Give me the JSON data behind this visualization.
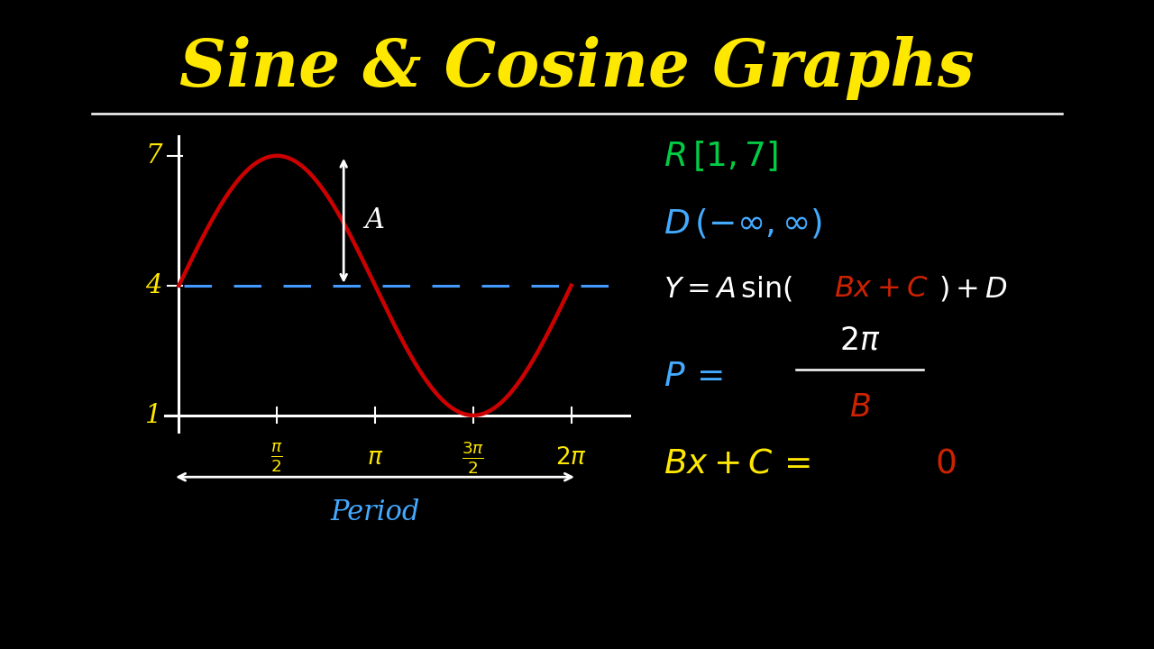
{
  "title": "Sine & Cosine Graphs",
  "title_color": "#FFE800",
  "bg_color": "#000000",
  "title_fontsize": 52,
  "separator_color": "#FFFFFF",
  "graph": {
    "gx0": 0.115,
    "gy0": 0.36,
    "gw": 0.38,
    "gh": 0.4,
    "y_labels": [
      1,
      4,
      7
    ],
    "sine_color": "#CC0000",
    "midline_color": "#4499FF",
    "axis_color": "#FFFFFF",
    "label_color": "#FFE800"
  },
  "annotations": {
    "period_label_color": "#44AAFF",
    "R_color": "#00CC44",
    "D_color": "#44AAFF",
    "P_color": "#44AAFF",
    "formula_main_color": "#FFFFFF",
    "formula_highlight_color": "#CC2200",
    "phase_color": "#FFE800",
    "phase_zero_color": "#CC2200"
  }
}
